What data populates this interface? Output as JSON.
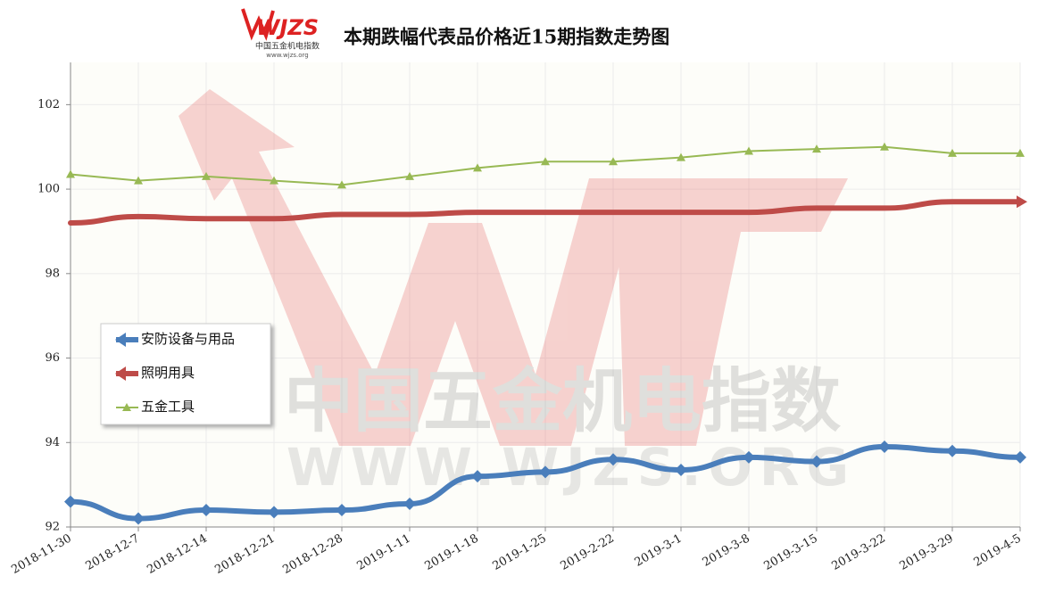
{
  "chart_data": {
    "type": "line",
    "title": "本期跌幅代表品价格近15期指数走势图",
    "logo": {
      "text": "WJZS",
      "name": "中国五金机电指数",
      "url": "www.wjzs.org"
    },
    "watermark": {
      "name": "中国五金机电指数",
      "url": "WWW.WJZS.ORG"
    },
    "categories": [
      "2018-11-30",
      "2018-12-7",
      "2018-12-14",
      "2018-12-21",
      "2018-12-28",
      "2019-1-11",
      "2019-1-18",
      "2019-1-25",
      "2019-2-22",
      "2019-3-1",
      "2019-3-8",
      "2019-3-15",
      "2019-3-22",
      "2019-3-29",
      "2019-4-5"
    ],
    "series": [
      {
        "name": "安防设备与用品",
        "color": "#4a7ebb",
        "values": [
          92.6,
          92.2,
          92.4,
          92.35,
          92.4,
          92.55,
          93.2,
          93.3,
          93.6,
          93.35,
          93.65,
          93.55,
          93.9,
          93.8,
          93.65
        ]
      },
      {
        "name": "照明用具",
        "color": "#be4b48",
        "values": [
          99.2,
          99.35,
          99.3,
          99.3,
          99.4,
          99.4,
          99.45,
          99.45,
          99.45,
          99.45,
          99.45,
          99.55,
          99.55,
          99.7,
          99.7
        ]
      },
      {
        "name": "五金工具",
        "color": "#98b954",
        "values": [
          100.35,
          100.2,
          100.3,
          100.2,
          100.1,
          100.3,
          100.5,
          100.65,
          100.65,
          100.75,
          100.9,
          100.95,
          101.0,
          100.85,
          100.85
        ]
      }
    ],
    "ylim": [
      92,
      103
    ],
    "yticks": [
      92,
      94,
      96,
      98,
      100,
      102
    ],
    "grid": true,
    "legend": "left"
  }
}
